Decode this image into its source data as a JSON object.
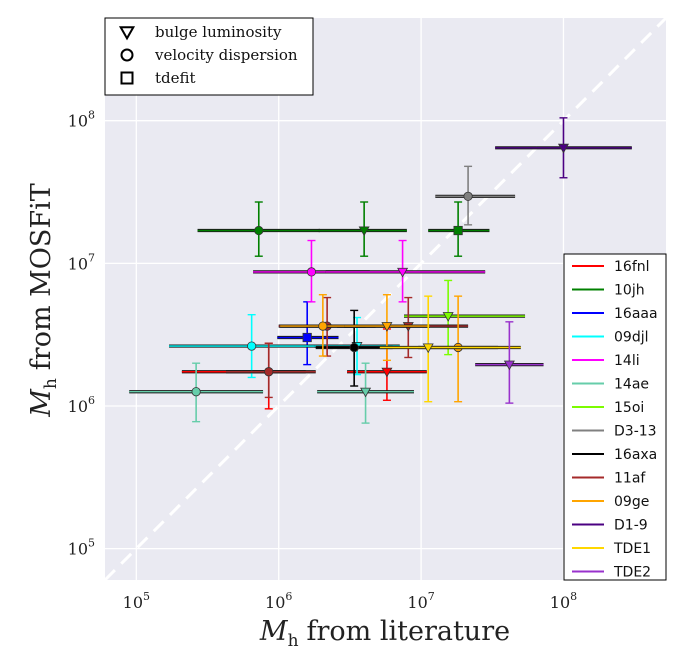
{
  "chart_data": {
    "type": "scatter",
    "title": "",
    "xlabel": "M_h from literature",
    "ylabel": "M_h from MOSFiT",
    "xlabel_parts": {
      "symbol": "M",
      "sub": "h",
      "rest": "from literature"
    },
    "ylabel_parts": {
      "symbol": "M",
      "sub": "h",
      "rest": "from MOSFiT"
    },
    "xscale": "log",
    "yscale": "log",
    "xlim_log10": [
      4.78,
      8.72
    ],
    "ylim_log10": [
      4.78,
      8.72
    ],
    "grid": true,
    "one_to_one_line": true,
    "x_ticks": [
      {
        "log": 5,
        "label": "10",
        "exp": "5"
      },
      {
        "log": 6,
        "label": "10",
        "exp": "6"
      },
      {
        "log": 7,
        "label": "10",
        "exp": "7"
      },
      {
        "log": 8,
        "label": "10",
        "exp": "8"
      }
    ],
    "y_ticks": [
      {
        "log": 5,
        "label": "10",
        "exp": "5"
      },
      {
        "log": 6,
        "label": "10",
        "exp": "6"
      },
      {
        "log": 7,
        "label": "10",
        "exp": "7"
      },
      {
        "log": 8,
        "label": "10",
        "exp": "8"
      }
    ],
    "method_legend": {
      "placement": "top-left",
      "items": [
        {
          "marker": "triangle",
          "label": "bulge luminosity"
        },
        {
          "marker": "circle",
          "label": "velocity dispersion"
        },
        {
          "marker": "square",
          "label": "tdefit"
        }
      ]
    },
    "series_legend": {
      "placement": "right",
      "items": [
        {
          "name": "16fnl",
          "color": "#ff0000"
        },
        {
          "name": "10jh",
          "color": "#008000"
        },
        {
          "name": "16aaa",
          "color": "#0000ff"
        },
        {
          "name": "09djl",
          "color": "#00ffff"
        },
        {
          "name": "14li",
          "color": "#ff00ff"
        },
        {
          "name": "14ae",
          "color": "#66cdaa"
        },
        {
          "name": "15oi",
          "color": "#7cfc00"
        },
        {
          "name": "D3-13",
          "color": "#808080"
        },
        {
          "name": "16axa",
          "color": "#000000"
        },
        {
          "name": "11af",
          "color": "#a52a2a"
        },
        {
          "name": "09ge",
          "color": "#ffa500"
        },
        {
          "name": "D1-9",
          "color": "#4b0082"
        },
        {
          "name": "TDE1",
          "color": "#ffd700"
        },
        {
          "name": "TDE2",
          "color": "#9932cc"
        }
      ]
    },
    "points": [
      {
        "series": "16fnl",
        "marker": "circle",
        "x": 5.93,
        "xerr": [
          0.61,
          0.26
        ],
        "y": 6.24,
        "yerr": [
          0.26,
          0.2
        ]
      },
      {
        "series": "16fnl",
        "marker": "triangle",
        "x": 6.76,
        "xerr": [
          0.28,
          0.28
        ],
        "y": 6.24,
        "yerr": [
          0.2,
          0.3
        ]
      },
      {
        "series": "10jh",
        "marker": "circle",
        "x": 5.86,
        "xerr": [
          0.43,
          0.43
        ],
        "y": 7.23,
        "yerr": [
          0.18,
          0.2
        ]
      },
      {
        "series": "10jh",
        "marker": "triangle",
        "x": 6.6,
        "xerr": [
          0.32,
          0.3
        ],
        "y": 7.23,
        "yerr": [
          0.18,
          0.2
        ]
      },
      {
        "series": "10jh",
        "marker": "square",
        "x": 7.26,
        "xerr": [
          0.21,
          0.22
        ],
        "y": 7.23,
        "yerr": [
          0.18,
          0.2
        ]
      },
      {
        "series": "16aaa",
        "marker": "square",
        "x": 6.2,
        "xerr": [
          0.21,
          0.22
        ],
        "y": 6.48,
        "yerr": [
          0.19,
          0.25
        ]
      },
      {
        "series": "09djl",
        "marker": "circle",
        "x": 5.81,
        "xerr": [
          0.58,
          0.58
        ],
        "y": 6.42,
        "yerr": [
          0.22,
          0.22
        ]
      },
      {
        "series": "09djl",
        "marker": "triangle",
        "x": 6.55,
        "xerr": [
          0.3,
          0.3
        ],
        "y": 6.42,
        "yerr": [
          0.2,
          0.2
        ]
      },
      {
        "series": "14li",
        "marker": "circle",
        "x": 6.23,
        "xerr": [
          0.41,
          0.41
        ],
        "y": 6.94,
        "yerr": [
          0.21,
          0.22
        ]
      },
      {
        "series": "14li",
        "marker": "triangle",
        "x": 6.87,
        "xerr": [
          0.54,
          0.58
        ],
        "y": 6.94,
        "yerr": [
          0.21,
          0.22
        ]
      },
      {
        "series": "14ae",
        "marker": "circle",
        "x": 5.42,
        "xerr": [
          0.47,
          0.47
        ],
        "y": 6.1,
        "yerr": [
          0.21,
          0.2
        ]
      },
      {
        "series": "14ae",
        "marker": "triangle",
        "x": 6.61,
        "xerr": [
          0.34,
          0.34
        ],
        "y": 6.1,
        "yerr": [
          0.22,
          0.2
        ]
      },
      {
        "series": "15oi",
        "marker": "triangle",
        "x": 7.19,
        "xerr": [
          0.31,
          0.54
        ],
        "y": 6.63,
        "yerr": [
          0.27,
          0.25
        ]
      },
      {
        "series": "D3-13",
        "marker": "circle",
        "x": 7.33,
        "xerr": [
          0.23,
          0.33
        ],
        "y": 7.47,
        "yerr": [
          0.2,
          0.21
        ]
      },
      {
        "series": "16axa",
        "marker": "circle",
        "x": 6.53,
        "xerr": [
          0.27,
          0.27
        ],
        "y": 6.41,
        "yerr": [
          0.27,
          0.26
        ]
      },
      {
        "series": "11af",
        "marker": "circle",
        "x": 5.93,
        "xerr": [
          0.3,
          0.33
        ],
        "y": 6.24,
        "yerr": [
          0.18,
          0.2
        ]
      },
      {
        "series": "11af",
        "marker": "triangle",
        "x": 6.91,
        "xerr": [
          0.5,
          0.42
        ],
        "y": 6.56,
        "yerr": [
          0.22,
          0.2
        ]
      },
      {
        "series": "11af",
        "marker": "circle",
        "x": 6.34,
        "xerr": [
          0.34,
          0.34
        ],
        "y": 6.56,
        "yerr": [
          0.21,
          0.2
        ]
      },
      {
        "series": "09ge",
        "marker": "circle",
        "x": 6.31,
        "xerr": [
          0.3,
          0.3
        ],
        "y": 6.56,
        "yerr": [
          0.21,
          0.22
        ]
      },
      {
        "series": "09ge",
        "marker": "triangle",
        "x": 6.76,
        "xerr": [
          0.3,
          0.3
        ],
        "y": 6.56,
        "yerr": [
          0.24,
          0.22
        ]
      },
      {
        "series": "09ge",
        "marker": "circle",
        "x": 7.26,
        "xerr": [
          0.28,
          0.28
        ],
        "y": 6.41,
        "yerr": [
          0.38,
          0.36
        ]
      },
      {
        "series": "D1-9",
        "marker": "triangle",
        "x": 8.0,
        "xerr": [
          0.48,
          0.48
        ],
        "y": 7.81,
        "yerr": [
          0.21,
          0.21
        ]
      },
      {
        "series": "TDE1",
        "marker": "triangle",
        "x": 7.05,
        "xerr": [
          0.34,
          0.65
        ],
        "y": 6.41,
        "yerr": [
          0.38,
          0.36
        ]
      },
      {
        "series": "TDE2",
        "marker": "triangle",
        "x": 7.62,
        "xerr": [
          0.24,
          0.24
        ],
        "y": 6.29,
        "yerr": [
          0.27,
          0.3
        ]
      }
    ]
  }
}
